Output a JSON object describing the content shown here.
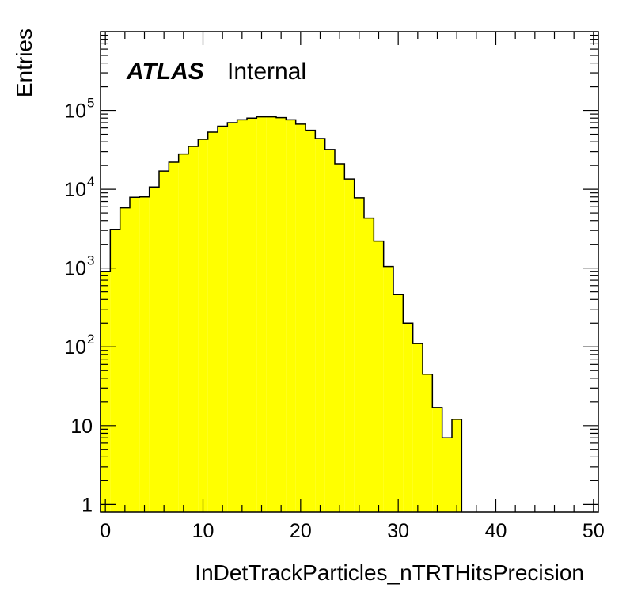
{
  "colors": {
    "fill": "#ffff00",
    "line": "#000000",
    "background": "#ffffff"
  },
  "labels": {
    "experiment": "ATLAS",
    "status": "Internal"
  },
  "chart_data": {
    "type": "bar",
    "histogram": true,
    "xlabel": "InDetTrackParticles_nTRTHitsPrecision",
    "ylabel": "Entries",
    "xlim": [
      -0.5,
      50.5
    ],
    "ylim": [
      0.8,
      1000000
    ],
    "log_y": true,
    "grid": false,
    "legend": "none",
    "bin_width": 1,
    "bin_low_edges": [
      -0.5,
      0.5,
      1.5,
      2.5,
      3.5,
      4.5,
      5.5,
      6.5,
      7.5,
      8.5,
      9.5,
      10.5,
      11.5,
      12.5,
      13.5,
      14.5,
      15.5,
      16.5,
      17.5,
      18.5,
      19.5,
      20.5,
      21.5,
      22.5,
      23.5,
      24.5,
      25.5,
      26.5,
      27.5,
      28.5,
      29.5,
      30.5,
      31.5,
      32.5,
      33.5,
      34.5,
      35.5
    ],
    "values": [
      900,
      3100,
      5800,
      7900,
      8000,
      10700,
      17000,
      22000,
      28000,
      35000,
      43000,
      53000,
      63000,
      70000,
      76000,
      80000,
      83000,
      83000,
      81000,
      76000,
      67000,
      56000,
      44000,
      32000,
      21000,
      13500,
      7800,
      4300,
      2200,
      1050,
      460,
      200,
      110,
      45,
      17,
      7,
      12
    ],
    "x_ticks": [
      {
        "value": 0,
        "label": "0"
      },
      {
        "value": 10,
        "label": "10"
      },
      {
        "value": 20,
        "label": "20"
      },
      {
        "value": 30,
        "label": "30"
      },
      {
        "value": 40,
        "label": "40"
      },
      {
        "value": 50,
        "label": "50"
      }
    ],
    "y_ticks": [
      {
        "value": 1,
        "base": "1",
        "exp": ""
      },
      {
        "value": 10,
        "base": "10",
        "exp": ""
      },
      {
        "value": 100,
        "base": "10",
        "exp": "2"
      },
      {
        "value": 1000,
        "base": "10",
        "exp": "3"
      },
      {
        "value": 10000,
        "base": "10",
        "exp": "4"
      },
      {
        "value": 100000,
        "base": "10",
        "exp": "5"
      }
    ]
  }
}
